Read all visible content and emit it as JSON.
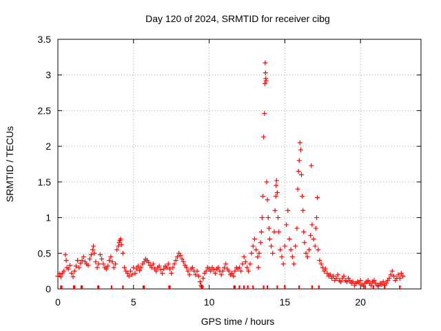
{
  "chart_data": {
    "type": "scatter",
    "title": "Day 120 of 2024, SRMTID for receiver cibg",
    "xlabel": "GPS time / hours",
    "ylabel": "SRMTID / TECUs",
    "xlim": [
      0,
      24
    ],
    "ylim": [
      0,
      3.5
    ],
    "xticks": [
      0,
      5,
      10,
      15,
      20
    ],
    "xtick_labels": [
      "0",
      "5",
      "10",
      "15",
      "20"
    ],
    "yticks": [
      0,
      0.5,
      1,
      1.5,
      2,
      2.5,
      3,
      3.5
    ],
    "ytick_labels": [
      "0",
      "0.5",
      "1",
      "1.5",
      "2",
      "2.5",
      "3",
      "3.5"
    ],
    "grid": true,
    "marker": "+",
    "color": "#ff0000",
    "series": [
      {
        "name": "SRMTID",
        "points": [
          [
            0.0,
            0.18
          ],
          [
            0.1,
            0.21
          ],
          [
            0.2,
            0.17
          ],
          [
            0.3,
            0.22
          ],
          [
            0.4,
            0.25
          ],
          [
            0.5,
            0.48
          ],
          [
            0.55,
            0.4
          ],
          [
            0.6,
            0.3
          ],
          [
            0.7,
            0.28
          ],
          [
            0.8,
            0.33
          ],
          [
            0.9,
            0.22
          ],
          [
            1.0,
            0.17
          ],
          [
            1.1,
            0.25
          ],
          [
            1.2,
            0.32
          ],
          [
            1.3,
            0.4
          ],
          [
            1.4,
            0.3
          ],
          [
            1.5,
            0.36
          ],
          [
            1.6,
            0.4
          ],
          [
            1.7,
            0.45
          ],
          [
            1.8,
            0.38
          ],
          [
            1.9,
            0.35
          ],
          [
            2.0,
            0.33
          ],
          [
            2.1,
            0.42
          ],
          [
            2.2,
            0.48
          ],
          [
            2.3,
            0.55
          ],
          [
            2.35,
            0.6
          ],
          [
            2.4,
            0.5
          ],
          [
            2.5,
            0.38
          ],
          [
            2.6,
            0.3
          ],
          [
            2.7,
            0.35
          ],
          [
            2.8,
            0.48
          ],
          [
            2.9,
            0.42
          ],
          [
            3.0,
            0.35
          ],
          [
            3.1,
            0.3
          ],
          [
            3.2,
            0.28
          ],
          [
            3.3,
            0.32
          ],
          [
            3.4,
            0.4
          ],
          [
            3.5,
            0.45
          ],
          [
            3.6,
            0.38
          ],
          [
            3.7,
            0.3
          ],
          [
            3.8,
            0.35
          ],
          [
            3.9,
            0.55
          ],
          [
            4.0,
            0.6
          ],
          [
            4.05,
            0.65
          ],
          [
            4.1,
            0.68
          ],
          [
            4.15,
            0.7
          ],
          [
            4.2,
            0.62
          ],
          [
            4.3,
            0.5
          ],
          [
            4.4,
            0.3
          ],
          [
            4.5,
            0.25
          ],
          [
            4.6,
            0.22
          ],
          [
            4.7,
            0.18
          ],
          [
            4.8,
            0.25
          ],
          [
            4.9,
            0.2
          ],
          [
            5.0,
            0.3
          ],
          [
            5.1,
            0.22
          ],
          [
            5.2,
            0.28
          ],
          [
            5.3,
            0.32
          ],
          [
            5.4,
            0.26
          ],
          [
            5.5,
            0.3
          ],
          [
            5.6,
            0.35
          ],
          [
            5.7,
            0.38
          ],
          [
            5.8,
            0.42
          ],
          [
            5.9,
            0.4
          ],
          [
            6.0,
            0.37
          ],
          [
            6.1,
            0.33
          ],
          [
            6.2,
            0.3
          ],
          [
            6.3,
            0.35
          ],
          [
            6.4,
            0.28
          ],
          [
            6.5,
            0.25
          ],
          [
            6.6,
            0.3
          ],
          [
            6.7,
            0.32
          ],
          [
            6.8,
            0.27
          ],
          [
            6.9,
            0.22
          ],
          [
            7.0,
            0.28
          ],
          [
            7.1,
            0.32
          ],
          [
            7.2,
            0.3
          ],
          [
            7.3,
            0.35
          ],
          [
            7.4,
            0.28
          ],
          [
            7.5,
            0.22
          ],
          [
            7.6,
            0.3
          ],
          [
            7.7,
            0.35
          ],
          [
            7.8,
            0.4
          ],
          [
            7.9,
            0.45
          ],
          [
            8.0,
            0.5
          ],
          [
            8.1,
            0.47
          ],
          [
            8.2,
            0.42
          ],
          [
            8.3,
            0.38
          ],
          [
            8.4,
            0.33
          ],
          [
            8.5,
            0.3
          ],
          [
            8.6,
            0.25
          ],
          [
            8.7,
            0.2
          ],
          [
            8.8,
            0.28
          ],
          [
            8.9,
            0.3
          ],
          [
            9.0,
            0.25
          ],
          [
            9.1,
            0.2
          ],
          [
            9.2,
            0.25
          ],
          [
            9.3,
            0.18
          ],
          [
            9.4,
            0.1
          ],
          [
            9.45,
            0.05
          ],
          [
            9.5,
            0.03
          ],
          [
            9.6,
            0.15
          ],
          [
            9.7,
            0.22
          ],
          [
            9.8,
            0.25
          ],
          [
            9.9,
            0.3
          ],
          [
            10.0,
            0.28
          ],
          [
            10.1,
            0.25
          ],
          [
            10.2,
            0.3
          ],
          [
            10.3,
            0.27
          ],
          [
            10.4,
            0.22
          ],
          [
            10.5,
            0.28
          ],
          [
            10.6,
            0.3
          ],
          [
            10.7,
            0.25
          ],
          [
            10.8,
            0.2
          ],
          [
            10.9,
            0.25
          ],
          [
            11.0,
            0.3
          ],
          [
            11.1,
            0.35
          ],
          [
            11.2,
            0.28
          ],
          [
            11.3,
            0.25
          ],
          [
            11.4,
            0.2
          ],
          [
            11.5,
            0.22
          ],
          [
            11.6,
            0.18
          ],
          [
            11.7,
            0.25
          ],
          [
            11.8,
            0.3
          ],
          [
            11.9,
            0.28
          ],
          [
            12.0,
            0.3
          ],
          [
            12.1,
            0.25
          ],
          [
            12.2,
            0.35
          ],
          [
            12.3,
            0.45
          ],
          [
            12.4,
            0.38
          ],
          [
            12.5,
            0.3
          ],
          [
            12.6,
            0.25
          ],
          [
            12.7,
            0.35
          ],
          [
            12.8,
            0.5
          ],
          [
            12.9,
            0.6
          ],
          [
            13.0,
            0.7
          ],
          [
            13.1,
            0.55
          ],
          [
            13.2,
            0.45
          ],
          [
            13.25,
            0.3
          ],
          [
            13.3,
            0.5
          ],
          [
            13.4,
            0.65
          ],
          [
            13.45,
            0.8
          ],
          [
            13.5,
            1.0
          ],
          [
            13.55,
            1.3
          ],
          [
            13.6,
            2.13
          ],
          [
            13.65,
            2.46
          ],
          [
            13.68,
            2.88
          ],
          [
            13.7,
            3.17
          ],
          [
            13.72,
            3.03
          ],
          [
            13.74,
            2.95
          ],
          [
            13.76,
            2.92
          ],
          [
            13.8,
            1.5
          ],
          [
            13.85,
            1.25
          ],
          [
            13.9,
            1.0
          ],
          [
            13.95,
            0.85
          ],
          [
            14.0,
            0.7
          ],
          [
            14.1,
            0.6
          ],
          [
            14.2,
            0.5
          ],
          [
            14.3,
            0.8
          ],
          [
            14.35,
            1.1
          ],
          [
            14.4,
            1.3
          ],
          [
            14.42,
            1.45
          ],
          [
            14.45,
            1.52
          ],
          [
            14.5,
            1.35
          ],
          [
            14.55,
            1.0
          ],
          [
            14.6,
            0.8
          ],
          [
            14.7,
            0.55
          ],
          [
            14.8,
            0.45
          ],
          [
            14.9,
            0.35
          ],
          [
            15.0,
            0.6
          ],
          [
            15.1,
            0.9
          ],
          [
            15.2,
            1.1
          ],
          [
            15.3,
            0.7
          ],
          [
            15.4,
            0.55
          ],
          [
            15.5,
            0.45
          ],
          [
            15.6,
            0.35
          ],
          [
            15.7,
            0.6
          ],
          [
            15.8,
            0.85
          ],
          [
            15.85,
            1.4
          ],
          [
            15.9,
            1.65
          ],
          [
            15.95,
            1.8
          ],
          [
            16.0,
            2.05
          ],
          [
            16.05,
            1.95
          ],
          [
            16.1,
            1.6
          ],
          [
            16.15,
            1.3
          ],
          [
            16.2,
            1.1
          ],
          [
            16.25,
            0.8
          ],
          [
            16.3,
            0.65
          ],
          [
            16.4,
            0.5
          ],
          [
            16.5,
            0.45
          ],
          [
            16.6,
            0.55
          ],
          [
            16.7,
            0.75
          ],
          [
            16.75,
            1.73
          ],
          [
            16.8,
            0.9
          ],
          [
            16.9,
            0.7
          ],
          [
            17.0,
            0.6
          ],
          [
            17.05,
            0.85
          ],
          [
            17.1,
            1.0
          ],
          [
            17.15,
            1.28
          ],
          [
            17.2,
            0.55
          ],
          [
            17.3,
            0.4
          ],
          [
            17.4,
            0.35
          ],
          [
            17.5,
            0.3
          ],
          [
            17.6,
            0.25
          ],
          [
            17.7,
            0.28
          ],
          [
            17.8,
            0.22
          ],
          [
            17.9,
            0.18
          ],
          [
            18.0,
            0.2
          ],
          [
            18.1,
            0.15
          ],
          [
            18.2,
            0.18
          ],
          [
            18.3,
            0.12
          ],
          [
            18.4,
            0.15
          ],
          [
            18.5,
            0.2
          ],
          [
            18.6,
            0.12
          ],
          [
            18.7,
            0.1
          ],
          [
            18.8,
            0.15
          ],
          [
            18.9,
            0.18
          ],
          [
            19.0,
            0.12
          ],
          [
            19.1,
            0.1
          ],
          [
            19.2,
            0.15
          ],
          [
            19.3,
            0.12
          ],
          [
            19.4,
            0.08
          ],
          [
            19.5,
            0.1
          ],
          [
            19.6,
            0.05
          ],
          [
            19.7,
            0.08
          ],
          [
            19.8,
            0.1
          ],
          [
            19.9,
            0.08
          ],
          [
            20.0,
            0.12
          ],
          [
            20.1,
            0.06
          ],
          [
            20.2,
            0.04
          ],
          [
            20.3,
            0.08
          ],
          [
            20.4,
            0.1
          ],
          [
            20.5,
            0.12
          ],
          [
            20.6,
            0.08
          ],
          [
            20.7,
            0.05
          ],
          [
            20.8,
            0.1
          ],
          [
            20.9,
            0.12
          ],
          [
            21.0,
            0.08
          ],
          [
            21.1,
            0.05
          ],
          [
            21.2,
            0.04
          ],
          [
            21.3,
            0.08
          ],
          [
            21.4,
            0.06
          ],
          [
            21.5,
            0.1
          ],
          [
            21.6,
            0.05
          ],
          [
            21.7,
            0.08
          ],
          [
            21.8,
            0.12
          ],
          [
            21.9,
            0.15
          ],
          [
            22.0,
            0.2
          ],
          [
            22.1,
            0.25
          ],
          [
            22.2,
            0.18
          ],
          [
            22.3,
            0.12
          ],
          [
            22.4,
            0.15
          ],
          [
            22.5,
            0.2
          ],
          [
            22.6,
            0.15
          ],
          [
            22.7,
            0.22
          ],
          [
            22.8,
            0.18
          ]
        ]
      }
    ],
    "flag_intervals": [
      [
        0.15,
        0.3
      ],
      [
        1.0,
        1.15
      ],
      [
        1.5,
        1.65
      ],
      [
        2.6,
        2.75
      ],
      [
        3.5,
        3.6
      ],
      [
        4.25,
        4.35
      ],
      [
        5.6,
        5.75
      ],
      [
        7.3,
        7.45
      ],
      [
        9.45,
        9.6
      ],
      [
        11.6,
        11.75
      ],
      [
        11.95,
        12.05
      ],
      [
        12.25,
        12.35
      ],
      [
        12.5,
        12.6
      ],
      [
        12.85,
        12.95
      ],
      [
        13.55,
        13.65
      ],
      [
        13.8,
        13.9
      ],
      [
        14.45,
        14.55
      ],
      [
        14.95,
        15.05
      ],
      [
        15.9,
        16.0
      ],
      [
        16.75,
        16.85
      ],
      [
        17.2,
        17.3
      ],
      [
        20.25,
        20.35
      ],
      [
        20.8,
        20.9
      ],
      [
        21.55,
        21.65
      ],
      [
        22.55,
        22.65
      ]
    ]
  }
}
